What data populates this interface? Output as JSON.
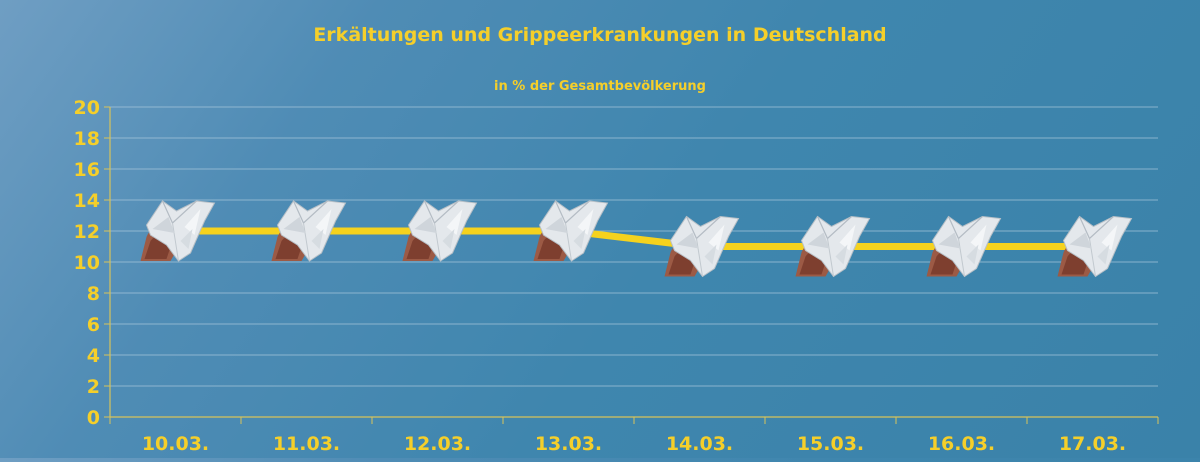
{
  "chart_data": {
    "type": "line",
    "title": "Erkältungen und Grippeerkrankungen in Deutschland",
    "subtitle": "in % der Gesamtbevölkerung",
    "categories": [
      "10.03.",
      "11.03.",
      "12.03.",
      "13.03.",
      "14.03.",
      "15.03.",
      "16.03.",
      "17.03."
    ],
    "series": [
      {
        "values": [
          12,
          12,
          12,
          12,
          11,
          11,
          11,
          11
        ]
      }
    ],
    "ylim": [
      0,
      20
    ],
    "yticks": [
      "0",
      "2",
      "4",
      "6",
      "8",
      "10",
      "12",
      "14",
      "16",
      "18",
      "20"
    ],
    "grid": true,
    "marker_icon": "tissue-in-hand-icon",
    "colors": {
      "text": "#f5cf2a",
      "line": "#f5d21e",
      "grid": "#a9c7dc",
      "axis": "#d7c35a"
    }
  }
}
